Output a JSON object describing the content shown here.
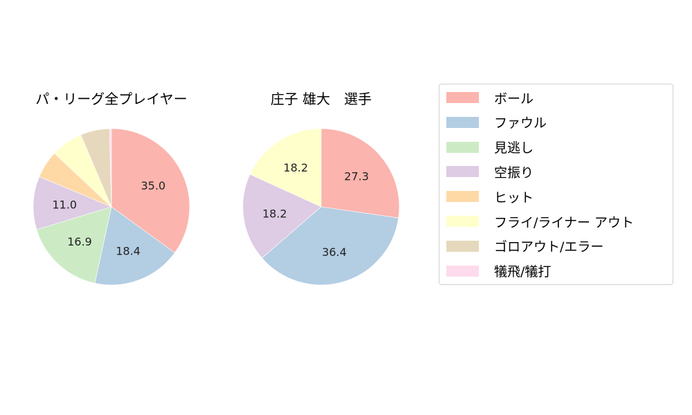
{
  "chart_data": [
    {
      "type": "pie",
      "title": "パ・リーグ全プレイヤー",
      "categories": [
        "ボール",
        "ファウル",
        "見逃し",
        "空振り",
        "ヒット",
        "フライ/ライナー アウト",
        "ゴロアウト/エラー",
        "犠飛/犠打"
      ],
      "values": [
        35.0,
        18.4,
        16.9,
        11.0,
        5.7,
        6.6,
        6.0,
        0.4
      ],
      "labels_shown": [
        "35.0",
        "18.4",
        "16.9",
        "11.0",
        "",
        "",
        "",
        ""
      ],
      "start_angle": 90,
      "direction": "clockwise"
    },
    {
      "type": "pie",
      "title": "庄子 雄大　選手",
      "categories": [
        "ボール",
        "ファウル",
        "見逃し",
        "空振り",
        "ヒット",
        "フライ/ライナー アウト",
        "ゴロアウト/エラー",
        "犠飛/犠打"
      ],
      "values": [
        27.3,
        36.4,
        0,
        18.2,
        0,
        18.2,
        0,
        0
      ],
      "labels_shown": [
        "27.3",
        "36.4",
        "",
        "18.2",
        "",
        "18.2",
        "",
        ""
      ],
      "start_angle": 90,
      "direction": "clockwise"
    }
  ],
  "legend": {
    "position": "right",
    "items": [
      {
        "label": "ボール",
        "color": "#fbb4ae"
      },
      {
        "label": "ファウル",
        "color": "#b3cde3"
      },
      {
        "label": "見逃し",
        "color": "#ccebc5"
      },
      {
        "label": "空振り",
        "color": "#decbe4"
      },
      {
        "label": "ヒット",
        "color": "#fed9a6"
      },
      {
        "label": "フライ/ライナー アウト",
        "color": "#ffffcc"
      },
      {
        "label": "ゴロアウト/エラー",
        "color": "#e5d8bd"
      },
      {
        "label": "犠飛/犠打",
        "color": "#fddaec"
      }
    ]
  }
}
